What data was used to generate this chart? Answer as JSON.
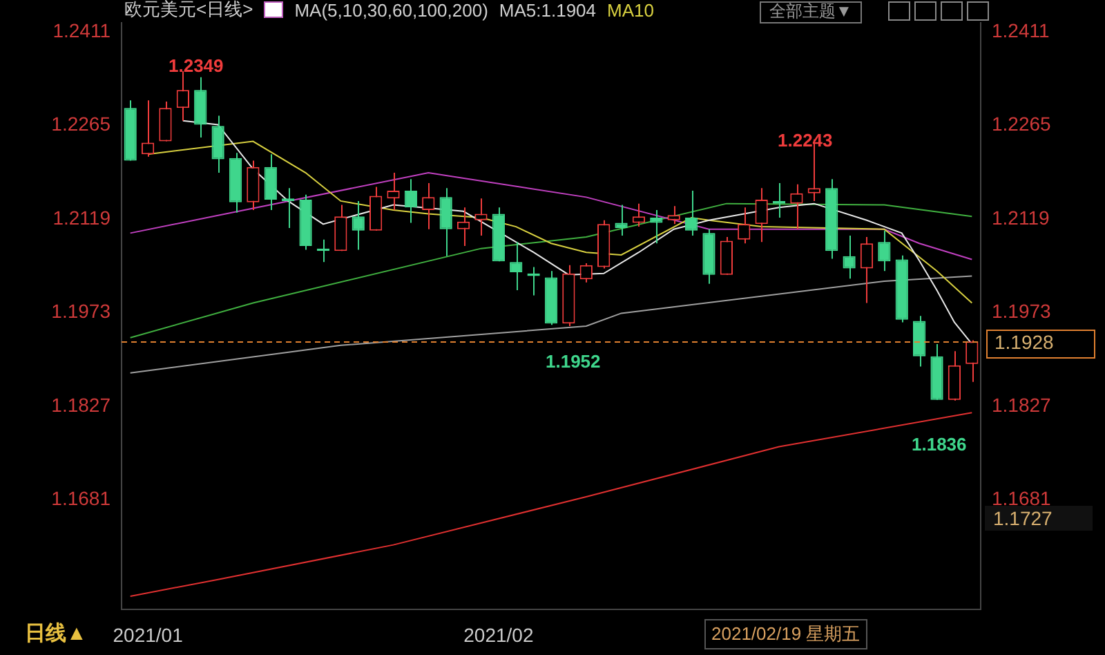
{
  "chart_data": {
    "type": "candlestick",
    "title": "欧元美元<日线>",
    "categories": [
      null,
      "2021/01",
      null,
      null,
      null,
      null,
      null,
      null,
      null,
      null,
      null,
      null,
      null,
      null,
      null,
      null,
      null,
      null,
      null,
      null,
      null,
      "2021/02",
      null,
      null,
      null,
      null,
      null,
      null,
      null,
      null,
      null,
      null,
      null,
      null,
      null,
      null,
      null,
      null,
      null,
      null,
      null,
      null,
      null,
      null,
      null,
      null,
      null,
      null,
      null
    ],
    "ohlc": [
      [
        1.2292,
        1.2304,
        1.221,
        1.221
      ],
      [
        1.222,
        1.2304,
        1.2216,
        1.2238
      ],
      [
        1.224,
        1.2302,
        1.224,
        1.2292
      ],
      [
        1.2292,
        1.2349,
        1.2272,
        1.232
      ],
      [
        1.232,
        1.234,
        1.2246,
        1.2266
      ],
      [
        1.2264,
        1.228,
        1.2191,
        1.2212
      ],
      [
        1.2214,
        1.2222,
        1.2129,
        1.2145
      ],
      [
        1.2145,
        1.221,
        1.2133,
        1.22
      ],
      [
        1.22,
        1.222,
        1.2133,
        1.2149
      ],
      [
        1.2151,
        1.2167,
        1.2105,
        1.2147
      ],
      [
        1.2149,
        1.2157,
        1.2071,
        1.2077
      ],
      [
        1.2073,
        1.2087,
        1.2052,
        1.2069
      ],
      [
        1.2069,
        1.2141,
        1.2069,
        1.2123
      ],
      [
        1.2123,
        1.2147,
        1.2071,
        1.2101
      ],
      [
        1.2101,
        1.2169,
        1.2101,
        1.2155
      ],
      [
        1.2151,
        1.2191,
        1.2133,
        1.2163
      ],
      [
        1.2163,
        1.2181,
        1.2113,
        1.2137
      ],
      [
        1.2133,
        1.2175,
        1.2103,
        1.2153
      ],
      [
        1.2153,
        1.2167,
        1.2061,
        1.2103
      ],
      [
        1.2103,
        1.2137,
        1.2077,
        1.2115
      ],
      [
        1.2117,
        1.2151,
        1.2093,
        1.2127
      ],
      [
        1.2127,
        1.2137,
        1.2053,
        1.2053
      ],
      [
        1.2052,
        1.2083,
        1.2008,
        1.2036
      ],
      [
        1.2034,
        1.2044,
        1.2,
        1.203
      ],
      [
        1.2028,
        1.2038,
        1.1954,
        1.1956
      ],
      [
        1.1956,
        1.2047,
        1.1952,
        1.2034
      ],
      [
        1.2025,
        1.205,
        1.202,
        1.2047
      ],
      [
        1.2044,
        1.2117,
        1.2042,
        1.2111
      ],
      [
        1.2113,
        1.2141,
        1.2093,
        1.2105
      ],
      [
        1.2113,
        1.2143,
        1.2107,
        1.2123
      ],
      [
        1.2121,
        1.2133,
        1.2081,
        1.2113
      ],
      [
        1.2117,
        1.2139,
        1.2111,
        1.2125
      ],
      [
        1.2121,
        1.2163,
        1.2093,
        1.2101
      ],
      [
        1.2097,
        1.2103,
        1.2018,
        1.2032
      ],
      [
        1.2032,
        1.2091,
        1.2032,
        1.2085
      ],
      [
        1.2087,
        1.2137,
        1.2081,
        1.2111
      ],
      [
        1.2111,
        1.2167,
        1.2083,
        1.2149
      ],
      [
        1.2147,
        1.2175,
        1.2121,
        1.2143
      ],
      [
        1.2143,
        1.2173,
        1.2103,
        1.2159
      ],
      [
        1.2159,
        1.2243,
        1.2147,
        1.2167
      ],
      [
        1.2167,
        1.2181,
        1.2057,
        1.2069
      ],
      [
        1.2061,
        1.2093,
        1.2026,
        1.2042
      ],
      [
        1.2042,
        1.2091,
        1.1988,
        1.2081
      ],
      [
        1.2083,
        1.2101,
        1.2038,
        1.2053
      ],
      [
        1.2056,
        1.2062,
        1.1958,
        1.1962
      ],
      [
        1.196,
        1.1968,
        1.1889,
        1.1905
      ],
      [
        1.1905,
        1.1924,
        1.1837,
        1.1837
      ],
      [
        1.1837,
        1.1913,
        1.1836,
        1.1891
      ],
      [
        1.1893,
        1.193,
        1.1865,
        1.1928
      ]
    ],
    "colors": [
      "#3fd68c",
      "#f03c3c",
      "#f03c3c",
      "#f03c3c",
      "#3fd68c",
      "#3fd68c",
      "#3fd68c",
      "#f03c3c",
      "#3fd68c",
      "#3fd68c",
      "#3fd68c",
      "#3fd68c",
      "#f03c3c",
      "#3fd68c",
      "#f03c3c",
      "#f03c3c",
      "#3fd68c",
      "#f03c3c",
      "#3fd68c",
      "#f03c3c",
      "#f03c3c",
      "#3fd68c",
      "#3fd68c",
      "#3fd68c",
      "#3fd68c",
      "#f03c3c",
      "#f03c3c",
      "#f03c3c",
      "#3fd68c",
      "#f03c3c",
      "#3fd68c",
      "#f03c3c",
      "#3fd68c",
      "#3fd68c",
      "#f03c3c",
      "#f03c3c",
      "#f03c3c",
      "#3fd68c",
      "#f03c3c",
      "#f03c3c",
      "#3fd68c",
      "#3fd68c",
      "#f03c3c",
      "#3fd68c",
      "#3fd68c",
      "#3fd68c",
      "#3fd68c",
      "#f03c3c",
      "#f03c3c"
    ],
    "series": [
      {
        "type": "line",
        "color": "#e8e8e8",
        "values": [
          null,
          null,
          null,
          1.2272,
          null,
          1.2266,
          null,
          1.2197,
          null,
          1.2147,
          null,
          1.2111,
          null,
          null,
          null,
          1.2141,
          null,
          null,
          null,
          1.2131,
          null,
          null,
          null,
          1.2067,
          null,
          1.2032,
          null,
          1.2034,
          null,
          1.2067,
          null,
          1.2103,
          null,
          1.2117,
          null,
          1.2127,
          null,
          1.2137,
          null,
          1.2143,
          null,
          null,
          1.2117,
          null,
          1.2097,
          1.2054,
          1.2008,
          1.1958,
          1.1924
        ]
      },
      {
        "type": "line",
        "color": "#d8d040",
        "values": [
          null,
          1.222,
          null,
          null,
          null,
          null,
          null,
          1.224,
          null,
          null,
          1.2191,
          null,
          1.2147,
          null,
          null,
          1.2133,
          null,
          1.2127,
          null,
          null,
          1.2121,
          null,
          1.2107,
          null,
          1.2081,
          null,
          1.2067,
          null,
          1.2063,
          null,
          null,
          null,
          1.2121,
          1.2117,
          null,
          null,
          1.2107,
          null,
          null,
          null,
          null,
          null,
          null,
          1.2103,
          null,
          null,
          1.2038,
          null,
          1.1988
        ]
      },
      {
        "type": "line",
        "color": "#c040c0",
        "values": [
          1.2097,
          null,
          null,
          null,
          null,
          null,
          null,
          null,
          null,
          null,
          null,
          null,
          null,
          null,
          null,
          null,
          null,
          1.2191,
          null,
          null,
          null,
          null,
          null,
          null,
          null,
          null,
          1.2153,
          null,
          null,
          null,
          null,
          null,
          null,
          1.2103,
          null,
          null,
          null,
          1.2103,
          null,
          null,
          null,
          null,
          null,
          1.2103,
          null,
          1.2081,
          null,
          null,
          1.2056
        ]
      },
      {
        "type": "line",
        "color": "#40b040",
        "values": [
          1.1934,
          null,
          null,
          null,
          null,
          null,
          null,
          1.1988,
          null,
          null,
          null,
          null,
          null,
          null,
          null,
          null,
          null,
          null,
          null,
          null,
          1.2073,
          null,
          null,
          null,
          null,
          null,
          1.2091,
          null,
          null,
          null,
          null,
          null,
          null,
          null,
          1.2143,
          null,
          null,
          null,
          null,
          null,
          null,
          null,
          null,
          1.2141,
          null,
          null,
          null,
          null,
          1.2123
        ]
      },
      {
        "type": "line",
        "color": "#a0a0a0",
        "values": [
          1.1879,
          null,
          null,
          null,
          null,
          null,
          null,
          null,
          null,
          null,
          null,
          null,
          1.1922,
          null,
          null,
          null,
          null,
          null,
          null,
          null,
          null,
          null,
          null,
          null,
          null,
          null,
          1.1952,
          null,
          1.1972,
          null,
          null,
          null,
          null,
          null,
          null,
          null,
          null,
          null,
          null,
          null,
          null,
          null,
          null,
          1.2022,
          null,
          null,
          null,
          null,
          1.203
        ]
      },
      {
        "type": "line",
        "color": "#e03030",
        "values": [
          1.1531,
          null,
          null,
          null,
          null,
          1.1557,
          null,
          null,
          null,
          null,
          null,
          null,
          null,
          null,
          null,
          1.1611,
          null,
          null,
          null,
          null,
          null,
          null,
          null,
          null,
          null,
          null,
          1.1686,
          null,
          null,
          null,
          null,
          null,
          null,
          null,
          null,
          null,
          null,
          1.1764,
          null,
          null,
          null,
          null,
          null,
          null,
          null,
          null,
          null,
          null,
          1.1817
        ]
      }
    ],
    "marker": "none",
    "ylim": [
      1.151,
      1.2425
    ],
    "yticks": [
      1.1681,
      1.1827,
      1.1973,
      1.2119,
      1.2265,
      1.2411
    ],
    "y2lim": [
      1.151,
      1.2425
    ],
    "y2ticks": [
      1.1681,
      1.1827,
      1.1973,
      1.2119,
      1.2265,
      1.2411
    ],
    "ref_lines": [
      {
        "axis": "y",
        "value": 1.1928,
        "label": "1.1928",
        "color": "#e08030",
        "line_style": "dashed"
      }
    ],
    "annotations": [
      "MA(5,10,30,60,100,200)",
      "MA5:1.1904",
      "MA10",
      "全部主题▼",
      "日线▲",
      "2021/02/19 星期五",
      "1.2349",
      "1.2243",
      "1.1952",
      "1.1836",
      "1.1727"
    ]
  }
}
